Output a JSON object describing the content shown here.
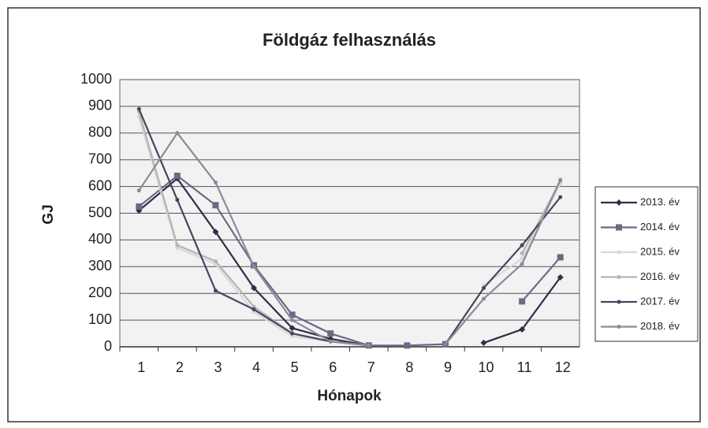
{
  "chart_data": {
    "type": "line",
    "title": "Földgáz felhasználás",
    "x_label": "Hónapok",
    "y_label": "GJ",
    "categories": [
      "1",
      "2",
      "3",
      "4",
      "5",
      "6",
      "7",
      "8",
      "9",
      "10",
      "11",
      "12"
    ],
    "ylim": [
      0,
      1000
    ],
    "yticks": [
      0,
      100,
      200,
      300,
      400,
      500,
      600,
      700,
      800,
      900,
      1000
    ],
    "grid": true,
    "legend": "right",
    "series": [
      {
        "name": "2013. év",
        "color": "#2e2e4a",
        "marker": "diamond",
        "values": [
          510,
          630,
          430,
          220,
          70,
          30,
          5,
          null,
          null,
          15,
          65,
          260
        ]
      },
      {
        "name": "2014. év",
        "color": "#6a6a86",
        "marker": "square",
        "values": [
          525,
          640,
          530,
          305,
          120,
          50,
          5,
          5,
          10,
          null,
          170,
          335
        ]
      },
      {
        "name": "2015. év",
        "color": "#d8d8d8",
        "marker": "circle",
        "values": [
          860,
          370,
          310,
          130,
          40,
          20,
          5,
          null,
          null,
          230,
          330,
          610
        ]
      },
      {
        "name": "2016. év",
        "color": "#b4b4b4",
        "marker": "circle",
        "values": [
          880,
          380,
          320,
          150,
          50,
          20,
          5,
          null,
          null,
          null,
          350,
          620
        ]
      },
      {
        "name": "2017. év",
        "color": "#45455f",
        "marker": "circle",
        "values": [
          890,
          550,
          210,
          140,
          50,
          20,
          5,
          null,
          10,
          220,
          380,
          560
        ]
      },
      {
        "name": "2018. év",
        "color": "#8a8a9c",
        "marker": "circle",
        "values": [
          585,
          800,
          615,
          300,
          100,
          20,
          5,
          null,
          10,
          180,
          310,
          625
        ]
      }
    ]
  }
}
